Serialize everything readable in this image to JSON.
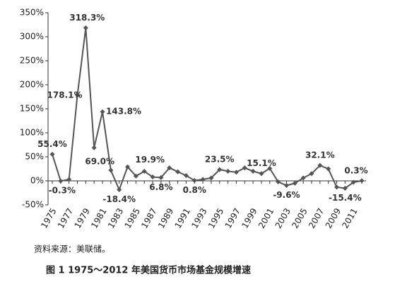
{
  "chart_data": {
    "type": "line",
    "title": "图 1   1975～2012 年美国货币市场基金规模增速",
    "source": "资料来源：美联储。",
    "categories": [
      "1975",
      null,
      "1977",
      null,
      "1979",
      null,
      "1981",
      null,
      "1983",
      null,
      "1985",
      null,
      "1987",
      null,
      "1989",
      null,
      "1991",
      null,
      "1993",
      null,
      "1995",
      null,
      "1997",
      null,
      "1999",
      null,
      "2001",
      null,
      "2003",
      null,
      "2005",
      null,
      "2007",
      null,
      "2009",
      null,
      "2011",
      null
    ],
    "series": [
      {
        "name": "增速",
        "color": "#555555",
        "values": [
          55.4,
          -0.3,
          3,
          178.1,
          318.3,
          69.0,
          143.8,
          22,
          -18.4,
          29,
          10,
          19.9,
          8,
          6.8,
          27,
          19,
          11,
          0.8,
          3,
          6,
          23.5,
          20,
          18,
          27,
          20,
          15.1,
          26,
          -2,
          -9.6,
          -5,
          6,
          15,
          32.1,
          25,
          -13,
          -15.4,
          -3,
          0.3
        ],
        "value_labels": [
          "55.4%",
          "-0.3%",
          null,
          "178.1%",
          "318.3%",
          "69.0%",
          "143.8%",
          null,
          "-18.4%",
          null,
          null,
          "19.9%",
          null,
          "6.8%",
          null,
          null,
          null,
          "0.8%",
          null,
          null,
          "23.5%",
          null,
          null,
          null,
          null,
          "15.1%",
          null,
          null,
          "-9.6%",
          null,
          null,
          null,
          "32.1%",
          null,
          null,
          "-15.4%",
          null,
          "0.3%"
        ]
      }
    ],
    "ylim": [
      -50,
      350
    ],
    "yticks": [
      {
        "value": -50,
        "label": "-50%"
      },
      {
        "value": 0,
        "label": "0%"
      },
      {
        "value": 50,
        "label": "50%"
      },
      {
        "value": 100,
        "label": "100%"
      },
      {
        "value": 150,
        "label": "150%"
      },
      {
        "value": 200,
        "label": "200%"
      },
      {
        "value": 250,
        "label": "250%"
      },
      {
        "value": 300,
        "label": "300%"
      },
      {
        "value": 350,
        "label": "350%"
      }
    ],
    "grid": false
  }
}
